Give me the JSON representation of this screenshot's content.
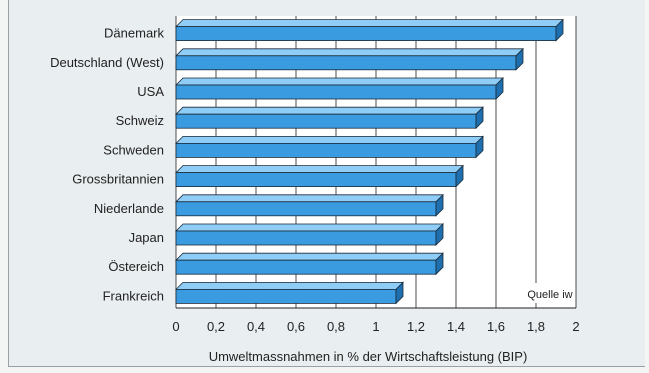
{
  "chart_data": {
    "type": "bar",
    "orientation": "horizontal",
    "categories": [
      "Dänemark",
      "Deutschland (West)",
      "USA",
      "Schweiz",
      "Schweden",
      "Grossbritannien",
      "Niederlande",
      "Japan",
      "Östereich",
      "Frankreich"
    ],
    "values": [
      1.9,
      1.7,
      1.6,
      1.5,
      1.5,
      1.4,
      1.3,
      1.3,
      1.3,
      1.1
    ],
    "xlabel": "Umweltmassnahmen in % der Wirtschaftsleistung (BIP)",
    "xlim": [
      0,
      2
    ],
    "xticks": [
      "0",
      "0,2",
      "0,4",
      "0,6",
      "0,8",
      "1",
      "1,2",
      "1,4",
      "1,6",
      "1,8",
      "2"
    ],
    "annotation": "Quelle iw",
    "grid": true,
    "bar_color": "#3a9be0"
  }
}
